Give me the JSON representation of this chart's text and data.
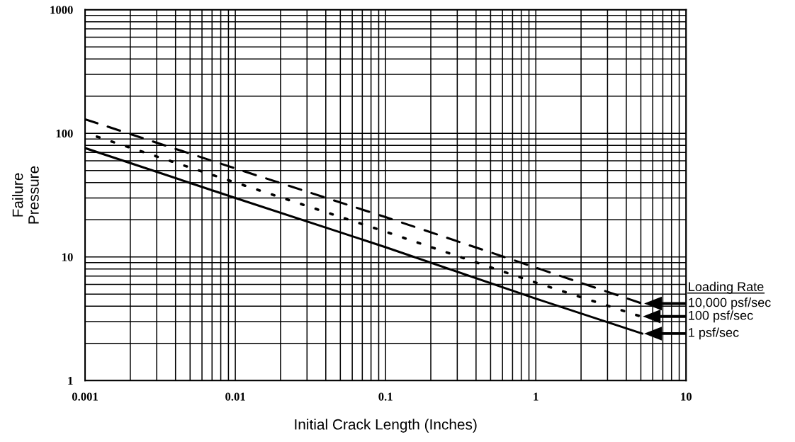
{
  "chart_data": {
    "type": "line",
    "xlabel": "Initial Crack Length (Inches)",
    "ylabel": "Failure\nPressure",
    "legend_title": "Loading Rate",
    "log": "xy",
    "grid": true,
    "xlim": [
      0.001,
      10
    ],
    "ylim": [
      1,
      1000
    ],
    "xticks": [
      0.001,
      0.01,
      0.1,
      1,
      10
    ],
    "yticks": [
      1,
      10,
      100,
      1000
    ],
    "marker": "none",
    "legend": "right",
    "series": [
      {
        "name": "10,000 psf/sec",
        "color": "#000000",
        "line_style": "dashed",
        "x": [
          0.001,
          0.01,
          0.1,
          1,
          5.1
        ],
        "values": [
          130,
          52,
          21,
          8.2,
          4.2
        ]
      },
      {
        "name": "100 psf/sec",
        "color": "#000000",
        "line_style": "dotted",
        "x": [
          0.0012,
          0.01,
          0.1,
          1,
          5.0
        ],
        "values": [
          94,
          40,
          16,
          6.2,
          3.3
        ]
      },
      {
        "name": "1 psf/sec",
        "color": "#000000",
        "line_style": "solid",
        "x": [
          0.001,
          0.01,
          0.1,
          1,
          5.1
        ],
        "values": [
          76,
          30,
          12,
          4.6,
          2.4
        ]
      }
    ]
  }
}
